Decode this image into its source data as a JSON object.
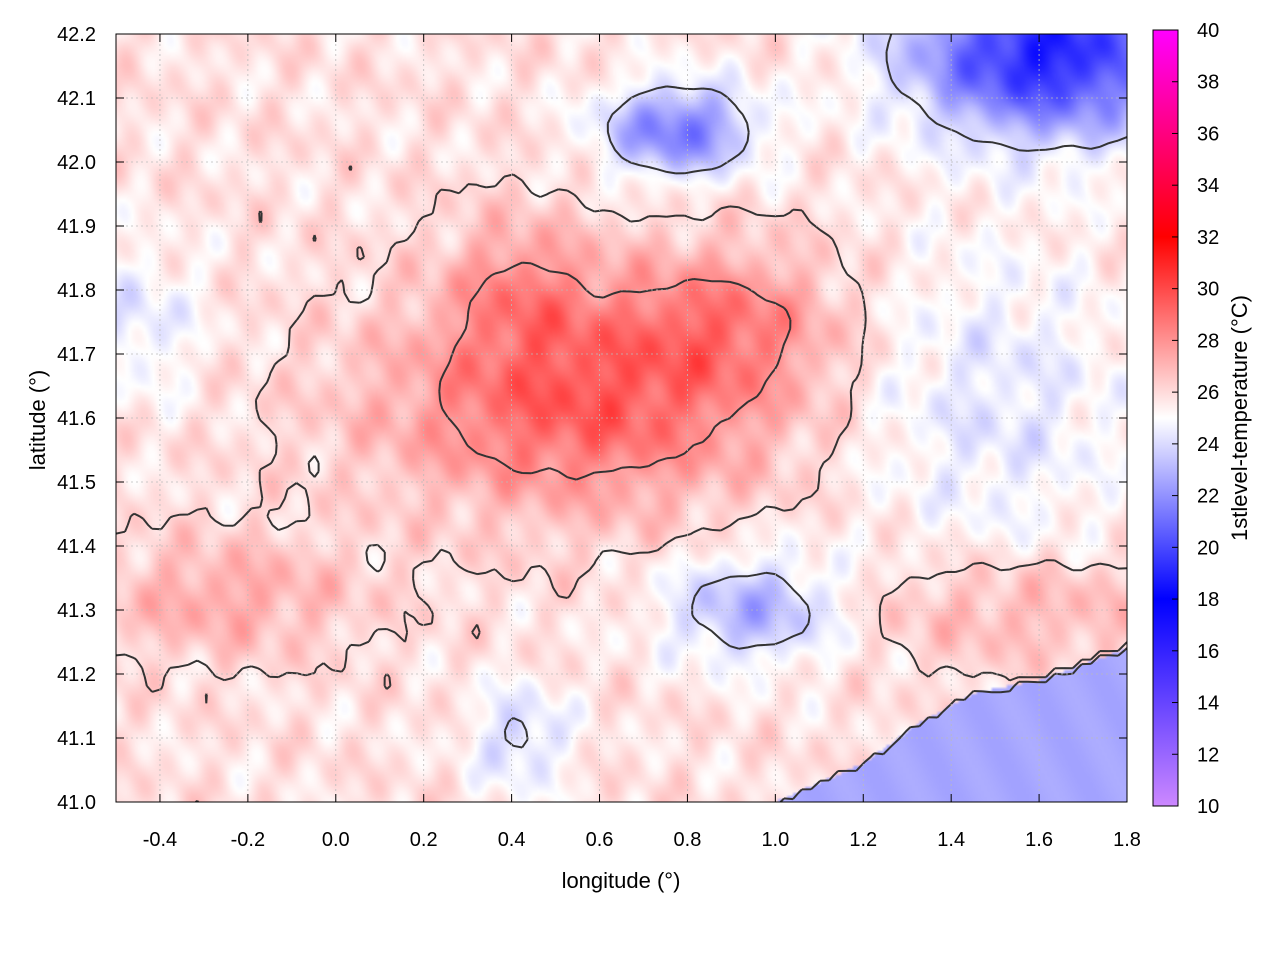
{
  "chart_data": {
    "type": "heatmap",
    "title": "",
    "xlabel": "longitude (°)",
    "ylabel": "latitude (°)",
    "colorbar_label": "1stlevel-temperature (°C)",
    "xlim": [
      -0.5,
      1.8
    ],
    "ylim": [
      41.0,
      42.2
    ],
    "color_range": [
      10,
      40
    ],
    "x_ticks": [
      "-0.4",
      "-0.2",
      "0.0",
      "0.2",
      "0.4",
      "0.6",
      "0.8",
      "1.0",
      "1.2",
      "1.4",
      "1.6",
      "1.8"
    ],
    "x_tick_values": [
      -0.4,
      -0.2,
      0.0,
      0.2,
      0.4,
      0.6,
      0.8,
      1.0,
      1.2,
      1.4,
      1.6,
      1.8
    ],
    "y_ticks": [
      "41.0",
      "41.1",
      "41.2",
      "41.3",
      "41.4",
      "41.5",
      "41.6",
      "41.7",
      "41.8",
      "41.9",
      "42.0",
      "42.1",
      "42.2"
    ],
    "y_tick_values": [
      41.0,
      41.1,
      41.2,
      41.3,
      41.4,
      41.5,
      41.6,
      41.7,
      41.8,
      41.9,
      42.0,
      42.1,
      42.2
    ],
    "colorbar_ticks": [
      "10",
      "12",
      "14",
      "16",
      "18",
      "20",
      "22",
      "24",
      "26",
      "28",
      "30",
      "32",
      "34",
      "36",
      "38",
      "40"
    ],
    "colorbar_tick_values": [
      10,
      12,
      14,
      16,
      18,
      20,
      22,
      24,
      26,
      28,
      30,
      32,
      34,
      36,
      38,
      40
    ],
    "colormap": [
      {
        "value": 10,
        "color": "#cc88ff"
      },
      {
        "value": 18,
        "color": "#0000ff"
      },
      {
        "value": 25,
        "color": "#ffffff"
      },
      {
        "value": 32,
        "color": "#ff0000"
      },
      {
        "value": 40,
        "color": "#ff00ff"
      }
    ],
    "grid": true,
    "contour_color": "#333333",
    "field": {
      "background_value": 25.8,
      "features": [
        {
          "name": "central warm core",
          "lon": 0.55,
          "lat": 41.62,
          "sigma_lon": 0.3,
          "sigma_lat": 0.11,
          "amp": 3.6
        },
        {
          "name": "warm arm north",
          "lon": 0.42,
          "lat": 41.8,
          "sigma_lon": 0.12,
          "sigma_lat": 0.08,
          "amp": 2.0
        },
        {
          "name": "warm arm east",
          "lon": 0.88,
          "lat": 41.75,
          "sigma_lon": 0.18,
          "sigma_lat": 0.08,
          "amp": 2.4
        },
        {
          "name": "warm southwest",
          "lon": -0.25,
          "lat": 41.32,
          "sigma_lon": 0.2,
          "sigma_lat": 0.06,
          "amp": 1.6
        },
        {
          "name": "warm southeast coast",
          "lon": 1.55,
          "lat": 41.3,
          "sigma_lon": 0.25,
          "sigma_lat": 0.06,
          "amp": 1.4
        },
        {
          "name": "cold northeast",
          "lon": 1.62,
          "lat": 42.17,
          "sigma_lon": 0.22,
          "sigma_lat": 0.09,
          "amp": -7.0
        },
        {
          "name": "cold north",
          "lon": 0.78,
          "lat": 42.05,
          "sigma_lon": 0.12,
          "sigma_lat": 0.05,
          "amp": -4.5
        },
        {
          "name": "cold east",
          "lon": 1.5,
          "lat": 41.62,
          "sigma_lon": 0.22,
          "sigma_lat": 0.18,
          "amp": -1.5
        },
        {
          "name": "cold south center",
          "lon": 0.95,
          "lat": 41.3,
          "sigma_lon": 0.14,
          "sigma_lat": 0.06,
          "amp": -3.0
        },
        {
          "name": "cold southwest inland",
          "lon": 0.42,
          "lat": 41.1,
          "sigma_lon": 0.08,
          "sigma_lat": 0.06,
          "amp": -2.0
        },
        {
          "name": "cold west",
          "lon": -0.45,
          "lat": 41.75,
          "sigma_lon": 0.1,
          "sigma_lat": 0.08,
          "amp": -1.5
        }
      ],
      "sea_value": 22.6,
      "coastline": [
        [
          1.0,
          41.0
        ],
        [
          1.2,
          41.06
        ],
        [
          1.32,
          41.12
        ],
        [
          1.45,
          41.17
        ],
        [
          1.6,
          41.19
        ],
        [
          1.8,
          41.24
        ]
      ]
    },
    "contour_levels": [
      24,
      26,
      28
    ]
  }
}
